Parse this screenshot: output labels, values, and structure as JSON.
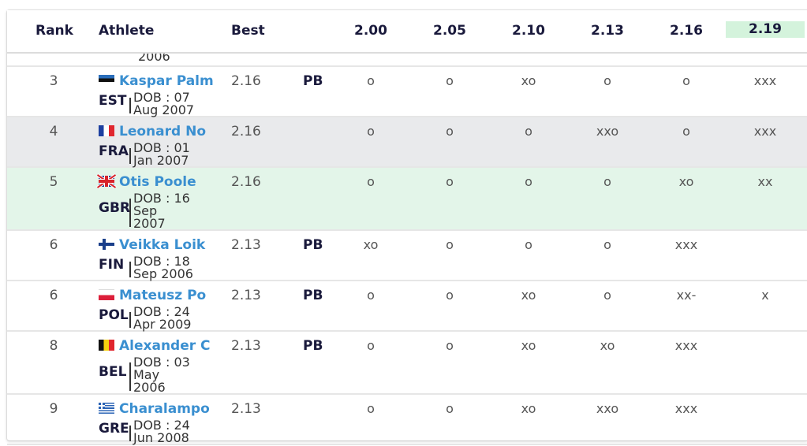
{
  "header": {
    "rank": "Rank",
    "athlete": "Athlete",
    "best": "Best",
    "heights": [
      "2.00",
      "2.05",
      "2.10",
      "2.13",
      "2.16",
      "2.19"
    ]
  },
  "cut_row_text": "2006",
  "colors": {
    "accent_name": "#3a8fd0",
    "active_height": "#d4f3dc",
    "highlight_row": "#e3f5e9",
    "alt_row": "#e9eaec"
  },
  "rows": [
    {
      "rank": "3",
      "flag": "estonia-flag-icon",
      "name": "Kaspar Palm",
      "country": "EST",
      "dob": [
        "DOB : 07",
        "Aug 2007"
      ],
      "best": "2.16",
      "pb": "PB",
      "attempts": [
        "o",
        "o",
        "xo",
        "o",
        "o",
        "xxx"
      ]
    },
    {
      "rank": "4",
      "flag": "france-flag-icon",
      "name": "Leonard No",
      "country": "FRA",
      "dob": [
        "DOB : 01",
        "Jan 2007"
      ],
      "best": "2.16",
      "pb": "",
      "attempts": [
        "o",
        "o",
        "o",
        "xxo",
        "o",
        "xxx"
      ]
    },
    {
      "rank": "5",
      "flag": "uk-flag-icon",
      "name": "Otis Poole",
      "country": "GBR",
      "dob": [
        "DOB : 16",
        "Sep",
        "2007"
      ],
      "best": "2.16",
      "pb": "",
      "attempts": [
        "o",
        "o",
        "o",
        "o",
        "xo",
        "xx"
      ]
    },
    {
      "rank": "6",
      "flag": "finland-flag-icon",
      "name": "Veikka Loik",
      "country": "FIN",
      "dob": [
        "DOB : 18",
        "Sep 2006"
      ],
      "best": "2.13",
      "pb": "PB",
      "attempts": [
        "xo",
        "o",
        "o",
        "o",
        "xxx",
        ""
      ]
    },
    {
      "rank": "6",
      "flag": "poland-flag-icon",
      "name": "Mateusz Po",
      "country": "POL",
      "dob": [
        "DOB : 24",
        "Apr 2009"
      ],
      "best": "2.13",
      "pb": "PB",
      "attempts": [
        "o",
        "o",
        "xo",
        "o",
        "xx-",
        "x"
      ]
    },
    {
      "rank": "8",
      "flag": "belgium-flag-icon",
      "name": "Alexander C",
      "country": "BEL",
      "dob": [
        "DOB : 03",
        "May",
        "2006"
      ],
      "best": "2.13",
      "pb": "PB",
      "attempts": [
        "o",
        "o",
        "xo",
        "xo",
        "xxx",
        ""
      ]
    },
    {
      "rank": "9",
      "flag": "greece-flag-icon",
      "name": "Charalampo",
      "country": "GRE",
      "dob": [
        "DOB : 24",
        "Jun 2008"
      ],
      "best": "2.13",
      "pb": "",
      "attempts": [
        "o",
        "o",
        "xo",
        "xxo",
        "xxx",
        ""
      ]
    }
  ]
}
